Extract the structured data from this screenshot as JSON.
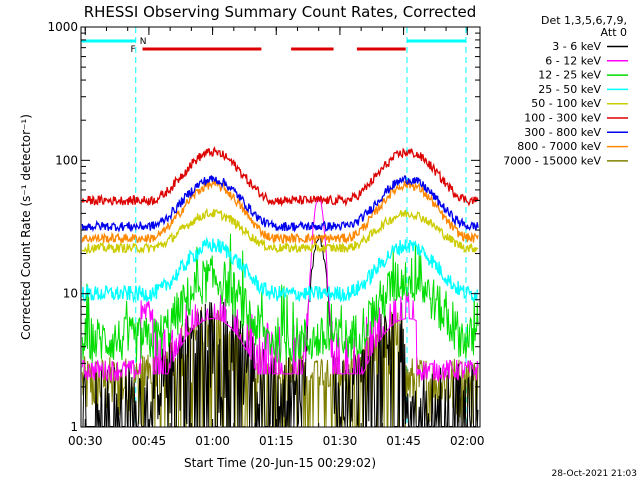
{
  "chart_data": {
    "type": "line",
    "title": "RHESSI Observing Summary Count Rates, Corrected",
    "xlabel": "Start Time (20-Jun-15 00:29:02)",
    "ylabel": "Corrected Count Rate (s⁻¹ detector⁻¹)",
    "y_scale": "log",
    "ylim": [
      1,
      1000
    ],
    "xlim_minutes": [
      0,
      94
    ],
    "xticks": [
      {
        "t": 1,
        "label": "00:30"
      },
      {
        "t": 16,
        "label": "00:45"
      },
      {
        "t": 31,
        "label": "01:00"
      },
      {
        "t": 46,
        "label": "01:15"
      },
      {
        "t": 61,
        "label": "01:30"
      },
      {
        "t": 76,
        "label": "01:45"
      },
      {
        "t": 91,
        "label": "02:00"
      }
    ],
    "yticks": [
      {
        "v": 1,
        "label": "1"
      },
      {
        "v": 10,
        "label": "10"
      },
      {
        "v": 100,
        "label": "100"
      },
      {
        "v": 1000,
        "label": "1000"
      }
    ],
    "legend_header": [
      "Det 1,3,5,6,7,9,",
      "Att 0"
    ],
    "series": [
      {
        "name": "3 - 6 keV",
        "color": "#000000"
      },
      {
        "name": "6 - 12 keV",
        "color": "#ff00ff"
      },
      {
        "name": "12 - 25 keV",
        "color": "#00dd00"
      },
      {
        "name": "25 - 50 keV",
        "color": "#00ffff"
      },
      {
        "name": "50 - 100 keV",
        "color": "#cccc00"
      },
      {
        "name": "100 - 300 keV",
        "color": "#dd0000"
      },
      {
        "name": "300 - 800 keV",
        "color": "#0000ee"
      },
      {
        "name": "800 - 7000 keV",
        "color": "#ff8800"
      },
      {
        "name": "7000 - 15000 keV",
        "color": "#808000"
      }
    ],
    "annotations": {
      "night_flag_label": "N",
      "flare_flag_label": "F",
      "night_intervals_minutes": [
        [
          0,
          12.9
        ],
        [
          76.8,
          90.7
        ]
      ],
      "flare_segments_minutes": [
        [
          14.5,
          42.5
        ],
        [
          49.5,
          59.5
        ],
        [
          65.0,
          76.5
        ]
      ],
      "flag_color_night": "#00ffff",
      "flag_color_flare": "#dd0000"
    },
    "approx_levels": {
      "background_counts": {
        "100 - 300 keV": 50,
        "300 - 800 keV": 32,
        "800 - 7000 keV": 26,
        "50 - 100 keV": 22,
        "25 - 50 keV": 10,
        "12 - 25 keV": 4.5,
        "6 - 12 keV": 2.7,
        "7000 - 15000 keV": 2.6
      },
      "orbital_peak_counts": {
        "100 - 300 keV": 115,
        "300 - 800 keV": 72,
        "800 - 7000 keV": 66,
        "50 - 100 keV": 40,
        "25 - 50 keV": 23,
        "12 - 25 keV": 13
      },
      "peak_times_minutes": [
        31,
        77
      ],
      "spike_6_12_keV": {
        "t": 56,
        "value": 50
      }
    }
  },
  "timestamp": "28-Oct-2021 21:03"
}
